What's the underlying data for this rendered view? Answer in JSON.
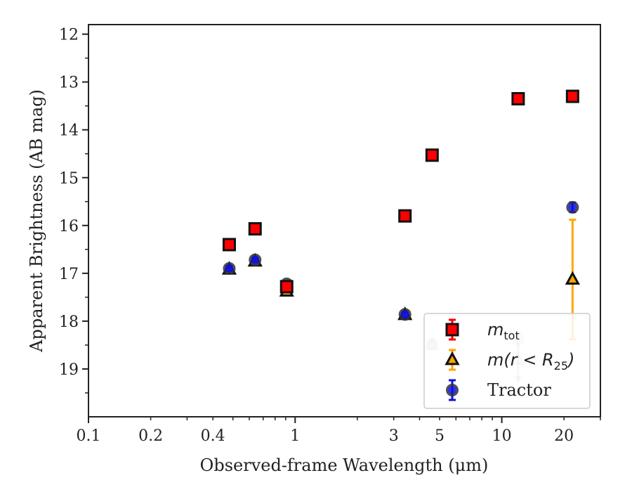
{
  "chart_data": {
    "type": "scatter",
    "xlabel": "Observed-frame Wavelength (μm)",
    "ylabel": "Apparent Brightness (AB mag)",
    "xscale": "log",
    "xlim": [
      0.1,
      30
    ],
    "ylim": [
      20,
      11.8
    ],
    "y_inverted": true,
    "grid": false,
    "legend_position": "lower-right",
    "x_ticks": [
      {
        "value": 0.1,
        "label": "0.1"
      },
      {
        "value": 0.2,
        "label": "0.2"
      },
      {
        "value": 0.4,
        "label": "0.4"
      },
      {
        "value": 1,
        "label": "1"
      },
      {
        "value": 3,
        "label": "3"
      },
      {
        "value": 5,
        "label": "5"
      },
      {
        "value": 10,
        "label": "10"
      },
      {
        "value": 20,
        "label": "20"
      }
    ],
    "y_ticks": [
      {
        "value": 12,
        "label": "12"
      },
      {
        "value": 13,
        "label": "13"
      },
      {
        "value": 14,
        "label": "14"
      },
      {
        "value": 15,
        "label": "15"
      },
      {
        "value": 16,
        "label": "16"
      },
      {
        "value": 17,
        "label": "17"
      },
      {
        "value": 18,
        "label": "18"
      },
      {
        "value": 19,
        "label": "19"
      }
    ],
    "series": [
      {
        "name": "m_tot",
        "legend_main": "m",
        "legend_sub": "tot",
        "marker": "square",
        "color": "#ff0000",
        "ecolor": "#ff0000",
        "points": [
          {
            "x": 0.48,
            "y": 16.4,
            "err": 0.05
          },
          {
            "x": 0.64,
            "y": 16.07,
            "err": 0.05
          },
          {
            "x": 0.91,
            "y": 17.28,
            "err": 0.05
          },
          {
            "x": 3.4,
            "y": 15.8,
            "err": 0.05
          },
          {
            "x": 4.6,
            "y": 14.53,
            "err": 0.05
          },
          {
            "x": 12.0,
            "y": 13.35,
            "err": 0.05
          },
          {
            "x": 22.0,
            "y": 13.3,
            "err": 0.05
          }
        ]
      },
      {
        "name": "m(r < R25)",
        "legend_main": "m(r < R",
        "legend_sub": "25",
        "marker": "triangle",
        "color": "#ffa500",
        "ecolor": "#ffa500",
        "points": [
          {
            "x": 0.48,
            "y": 16.92,
            "err": 0.0
          },
          {
            "x": 0.64,
            "y": 16.75,
            "err": 0.0
          },
          {
            "x": 0.91,
            "y": 17.38,
            "err": 0.0
          },
          {
            "x": 3.4,
            "y": 17.87,
            "err": 0.0
          },
          {
            "x": 4.6,
            "y": 18.5,
            "err": 0.0,
            "faded": true
          },
          {
            "x": 12.0,
            "y": 18.8,
            "err": 0.6,
            "faded": true
          },
          {
            "x": 22.0,
            "y": 17.13,
            "err": 1.25
          }
        ]
      },
      {
        "name": "Tractor",
        "legend_main": "Tractor",
        "legend_sub": "",
        "marker": "circle",
        "color": "#1010dd",
        "ecolor": "#1010dd",
        "points": [
          {
            "x": 0.48,
            "y": 16.9,
            "err": 0.05
          },
          {
            "x": 0.64,
            "y": 16.72,
            "err": 0.05
          },
          {
            "x": 0.91,
            "y": 17.22,
            "err": 0.05
          },
          {
            "x": 3.4,
            "y": 17.86,
            "err": 0.05
          },
          {
            "x": 4.6,
            "y": 18.48,
            "err": 0.0,
            "faded": true
          },
          {
            "x": 12.0,
            "y": 18.38,
            "err": 0.0,
            "faded": true,
            "upper_limit": true
          },
          {
            "x": 22.0,
            "y": 15.62,
            "err": 0.1
          }
        ]
      }
    ]
  }
}
